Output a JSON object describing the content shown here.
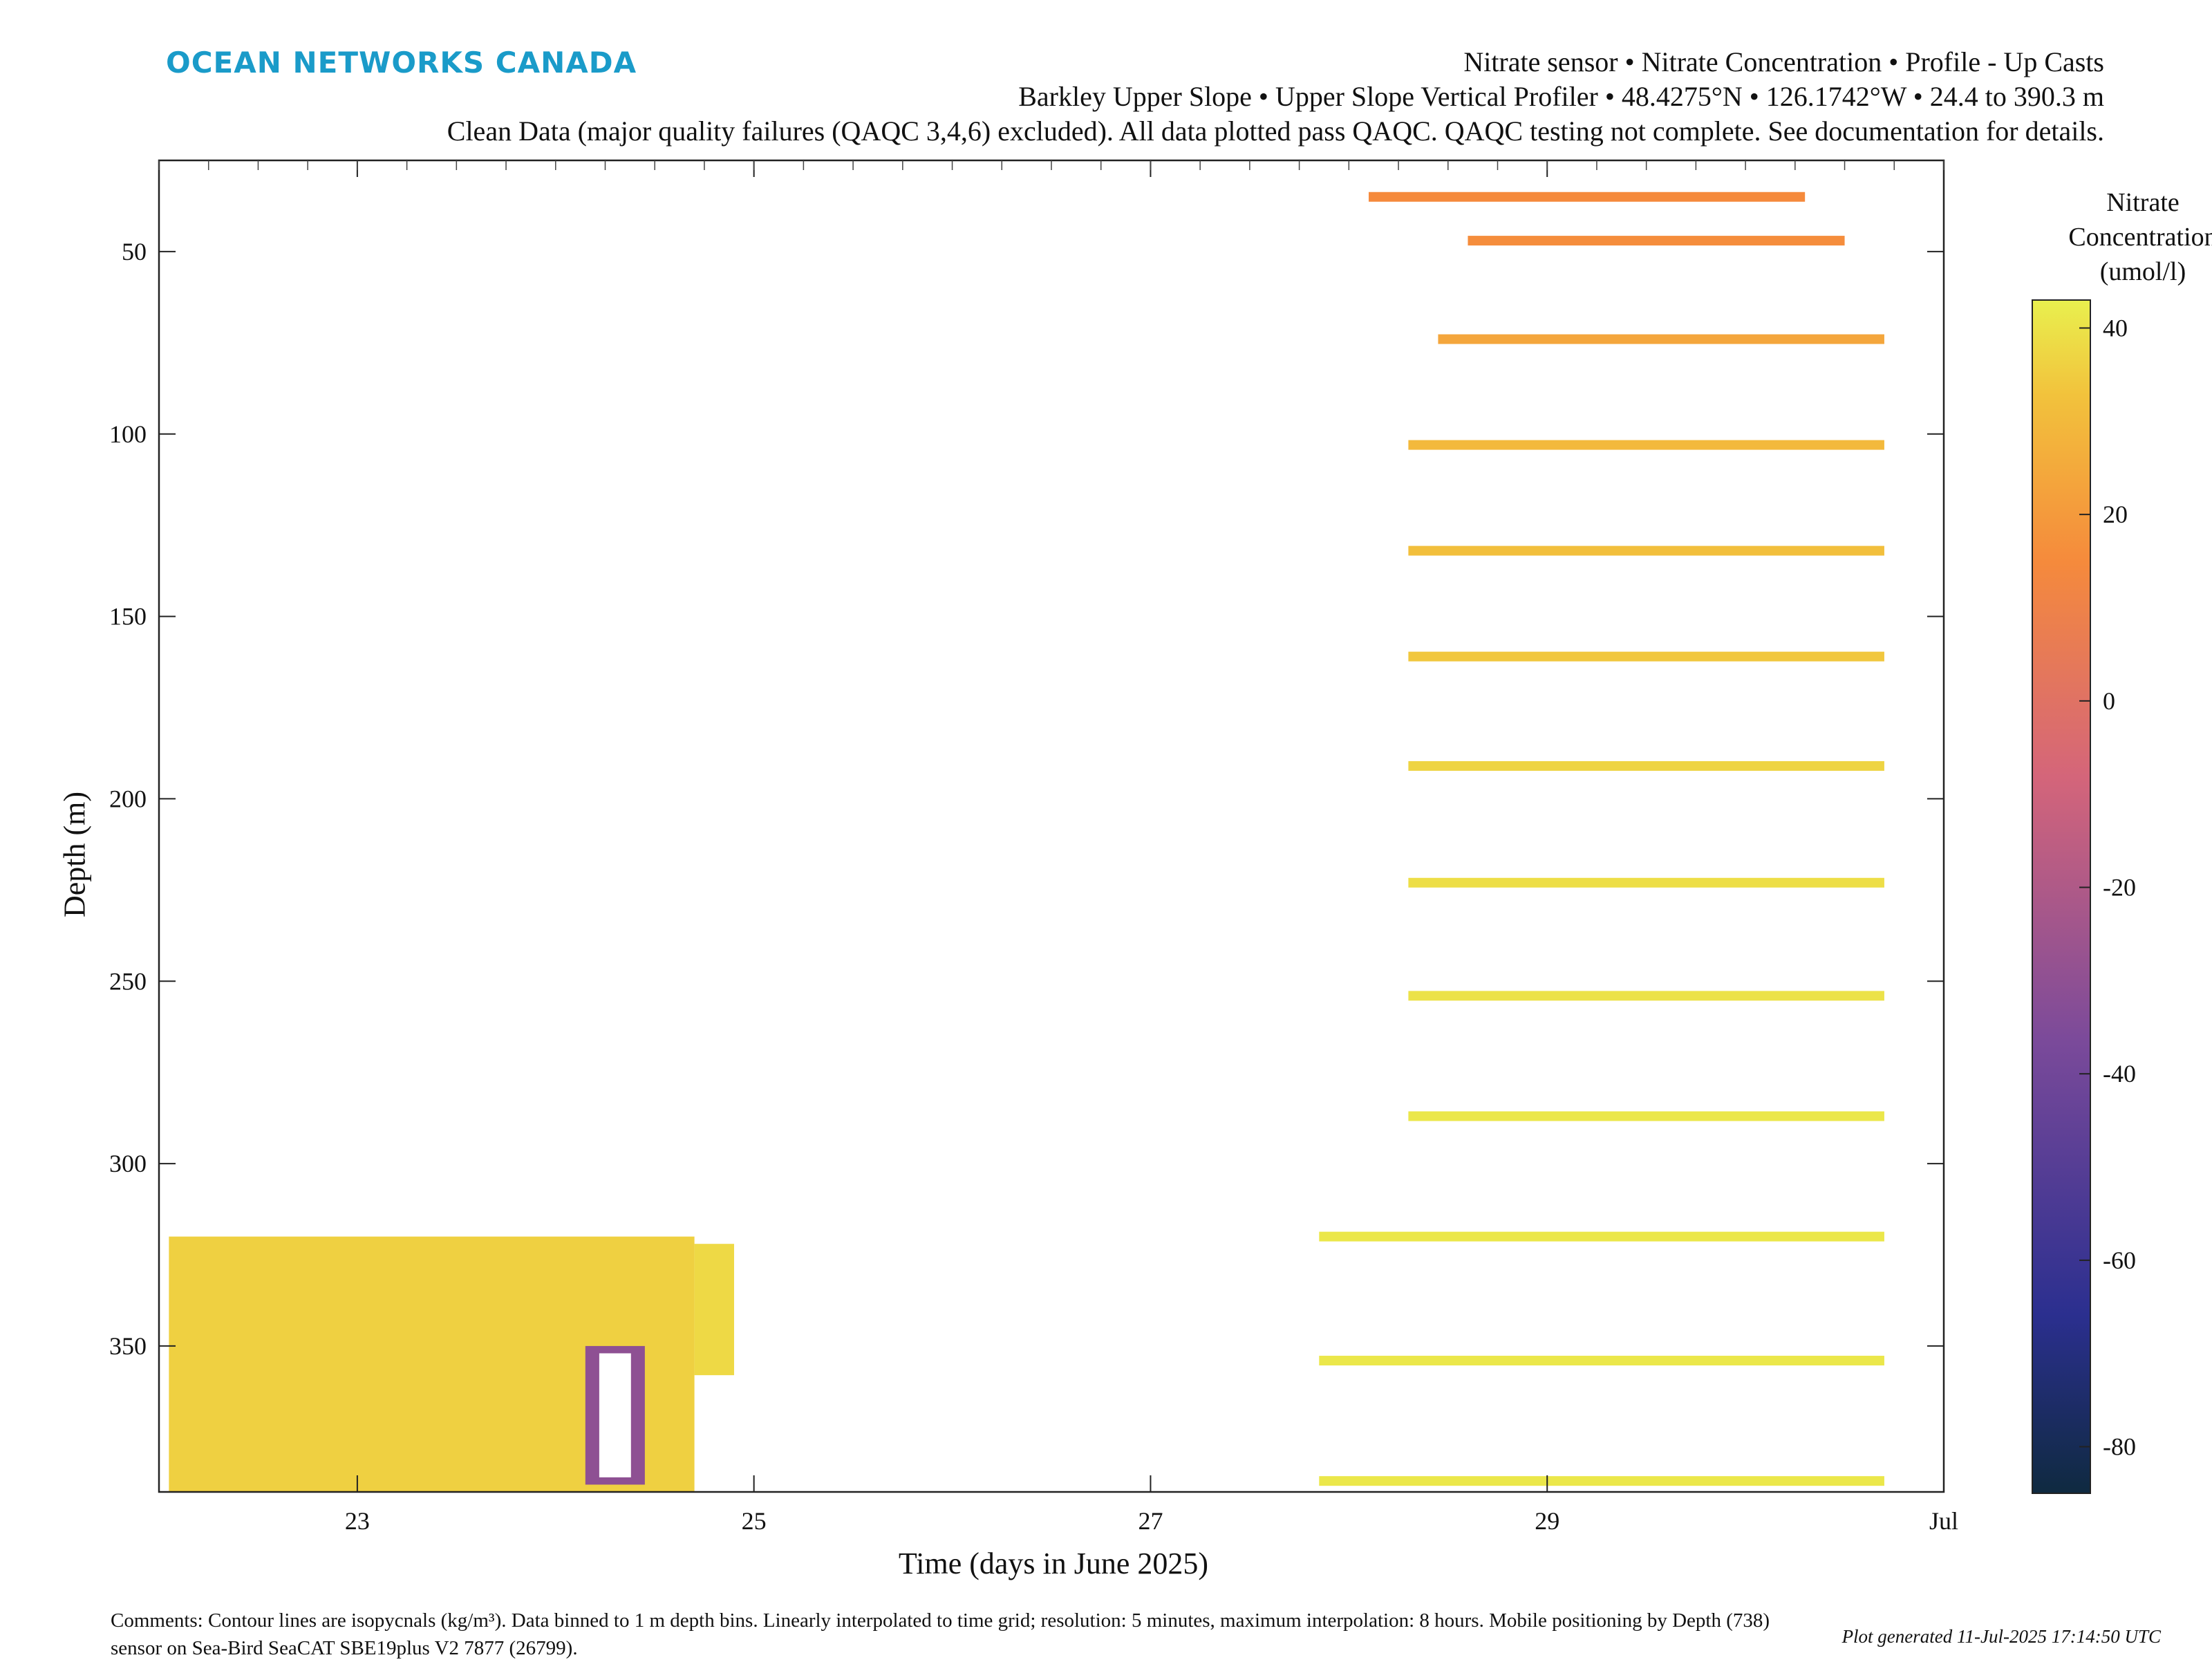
{
  "header": {
    "logo": "OCEAN NETWORKS CANADA",
    "line1": "Nitrate sensor • Nitrate Concentration • Profile - Up Casts",
    "line2": "Barkley Upper Slope • Upper Slope Vertical Profiler • 48.4275°N • 126.1742°W • 24.4 to 390.3 m",
    "line3": "Clean Data (major quality failures (QAQC 3,4,6) excluded). All data plotted pass QAQC. QAQC testing not complete. See documentation for details."
  },
  "footer": {
    "comments": "Comments: Contour lines are isopycnals (kg/m³). Data binned to 1 m depth bins. Linearly interpolated to time grid; resolution: 5 minutes, maximum interpolation: 8 hours. Mobile positioning by Depth (738) sensor on Sea-Bird SeaCAT SBE19plus V2 7877 (26799).",
    "generated": "Plot generated 11-Jul-2025 17:14:50 UTC"
  },
  "colors": {
    "high": "#e9f04e",
    "mid_high": "#f2b13c",
    "mid": "#f07f4f",
    "low": "#9b4f8d",
    "lowest": "#0f2a40",
    "axis": "#222222",
    "contour": "#000000"
  },
  "chart_data": {
    "type": "heatmap",
    "title": "",
    "xlabel": "Time (days in June 2025)",
    "ylabel": "Depth (m)",
    "xlim": [
      22,
      31
    ],
    "ylim": [
      25,
      390
    ],
    "y_reversed": true,
    "x_ticks": [
      23,
      25,
      27,
      29,
      31
    ],
    "x_tick_labels": [
      "23",
      "25",
      "27",
      "29",
      "Jul"
    ],
    "y_ticks": [
      50,
      100,
      150,
      200,
      250,
      300,
      350
    ],
    "colorbar": {
      "title": "Nitrate Concentration (umol/l)",
      "range": [
        -85,
        43
      ],
      "ticks": [
        40,
        20,
        0,
        -20,
        -40,
        -60,
        -80
      ]
    },
    "blocks": [
      {
        "x0": 22.05,
        "x1": 24.7,
        "y0": 320,
        "y1": 390,
        "value": 36
      },
      {
        "x0": 24.7,
        "x1": 24.9,
        "y0": 322,
        "y1": 358,
        "value": 38
      },
      {
        "x0": 24.15,
        "x1": 24.45,
        "y0": 350,
        "y1": 388,
        "value": -30
      }
    ],
    "bands": [
      {
        "depth": 35,
        "x0": 28.1,
        "x1": 30.3,
        "value": 15
      },
      {
        "depth": 47,
        "x0": 28.6,
        "x1": 30.5,
        "value": 16
      },
      {
        "depth": 74,
        "x0": 28.45,
        "x1": 30.7,
        "value": 24
      },
      {
        "depth": 103,
        "x0": 28.3,
        "x1": 30.7,
        "value": 30
      },
      {
        "depth": 132,
        "x0": 28.3,
        "x1": 30.7,
        "value": 32
      },
      {
        "depth": 161,
        "x0": 28.3,
        "x1": 30.7,
        "value": 34
      },
      {
        "depth": 191,
        "x0": 28.3,
        "x1": 30.7,
        "value": 37
      },
      {
        "depth": 223,
        "x0": 28.3,
        "x1": 30.7,
        "value": 39
      },
      {
        "depth": 254,
        "x0": 28.3,
        "x1": 30.7,
        "value": 40
      },
      {
        "depth": 287,
        "x0": 28.3,
        "x1": 30.7,
        "value": 41
      },
      {
        "depth": 320,
        "x0": 27.85,
        "x1": 30.7,
        "value": 41
      },
      {
        "depth": 354,
        "x0": 27.85,
        "x1": 30.7,
        "value": 41
      },
      {
        "depth": 387,
        "x0": 27.85,
        "x1": 30.7,
        "value": 41
      }
    ]
  }
}
